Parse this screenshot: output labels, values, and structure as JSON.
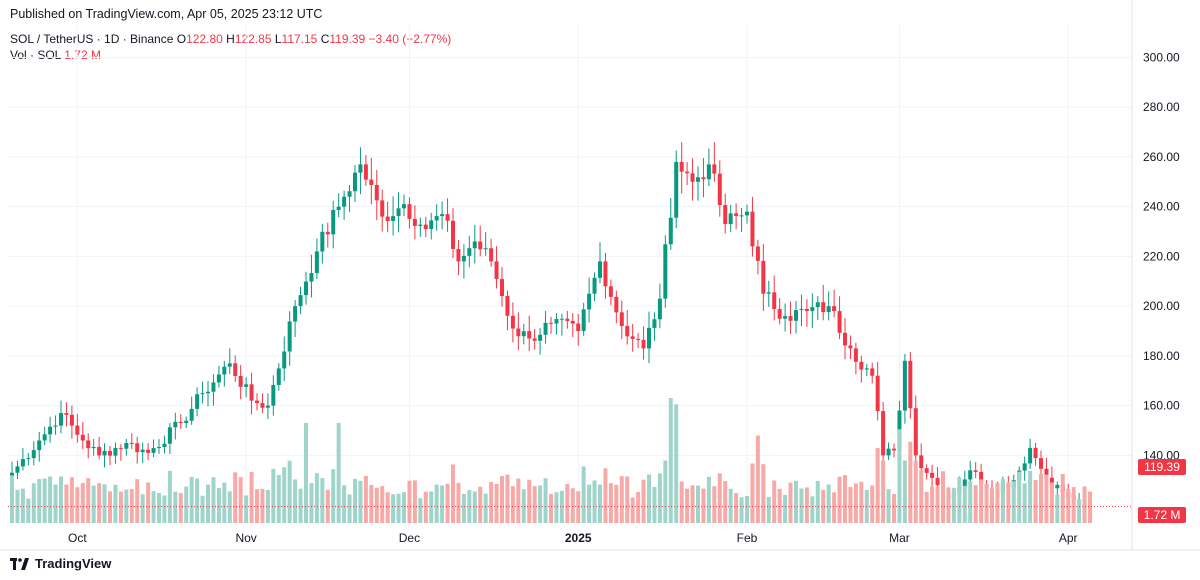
{
  "header": {
    "published": "Published on TradingView.com, Apr 05, 2025 23:12 UTC"
  },
  "legend": {
    "symbol": "SOL / TetherUS · 1D · Binance",
    "o_label": "O",
    "o_value": "122.80",
    "h_label": "H",
    "h_value": "122.85",
    "l_label": "L",
    "l_value": "117.15",
    "c_label": "C",
    "c_value": "119.39",
    "change": "−3.40 (−2.77%)",
    "vol_label": "Vol · SOL",
    "vol_value": "1.72 M"
  },
  "price_tag": "119.39",
  "vol_tag": "1.72 M",
  "footer": {
    "brand": "TradingView"
  },
  "colors": {
    "up": "#089981",
    "down": "#f23645",
    "vol_up": "#9fd4cb",
    "vol_down": "#f7a9a7"
  },
  "chart_data": {
    "type": "candlestick",
    "y_axis": {
      "min": 112,
      "max": 305,
      "ticks": [
        120,
        140,
        160,
        180,
        200,
        220,
        240,
        260,
        280,
        300
      ],
      "tick_labels": [
        "",
        "140.00",
        "160.00",
        "180.00",
        "200.00",
        "220.00",
        "240.00",
        "260.00",
        "280.00",
        "300.00"
      ],
      "position": "right"
    },
    "x_axis": {
      "start_date": "2024-09-19",
      "end_date": "2025-04-05",
      "ticks": [
        {
          "label": "Oct",
          "date": "2024-10-01"
        },
        {
          "label": "Nov",
          "date": "2024-11-01"
        },
        {
          "label": "Dec",
          "date": "2024-12-01"
        },
        {
          "label": "2025",
          "date": "2025-01-01",
          "bold": true
        },
        {
          "label": "Feb",
          "date": "2025-02-01"
        },
        {
          "label": "Mar",
          "date": "2025-03-01"
        },
        {
          "label": "Apr",
          "date": "2025-04-01"
        }
      ]
    },
    "grid": true,
    "last_price": 119.39,
    "keypoints": [
      [
        "2024-09-19",
        133
      ],
      [
        "2024-09-24",
        146
      ],
      [
        "2024-09-28",
        157
      ],
      [
        "2024-10-02",
        146
      ],
      [
        "2024-10-05",
        140
      ],
      [
        "2024-10-10",
        145
      ],
      [
        "2024-10-14",
        141
      ],
      [
        "2024-10-20",
        153
      ],
      [
        "2024-10-24",
        165
      ],
      [
        "2024-10-29",
        177
      ],
      [
        "2024-11-02",
        162
      ],
      [
        "2024-11-05",
        160
      ],
      [
        "2024-11-10",
        200
      ],
      [
        "2024-11-14",
        222
      ],
      [
        "2024-11-18",
        240
      ],
      [
        "2024-11-22",
        257
      ],
      [
        "2024-11-26",
        236
      ],
      [
        "2024-11-30",
        241
      ],
      [
        "2024-12-04",
        231
      ],
      [
        "2024-12-07",
        237
      ],
      [
        "2024-12-10",
        218
      ],
      [
        "2024-12-13",
        226
      ],
      [
        "2024-12-16",
        218
      ],
      [
        "2024-12-20",
        191
      ],
      [
        "2024-12-23",
        187
      ],
      [
        "2024-12-27",
        193
      ],
      [
        "2025-01-01",
        190
      ],
      [
        "2025-01-05",
        218
      ],
      [
        "2025-01-09",
        192
      ],
      [
        "2025-01-13",
        183
      ],
      [
        "2025-01-16",
        203
      ],
      [
        "2025-01-19",
        258
      ],
      [
        "2025-01-22",
        250
      ],
      [
        "2025-01-25",
        257
      ],
      [
        "2025-01-28",
        233
      ],
      [
        "2025-02-01",
        238
      ],
      [
        "2025-02-04",
        205
      ],
      [
        "2025-02-08",
        196
      ],
      [
        "2025-02-12",
        198
      ],
      [
        "2025-02-16",
        200
      ],
      [
        "2025-02-20",
        183
      ],
      [
        "2025-02-24",
        172
      ],
      [
        "2025-02-26",
        140
      ],
      [
        "2025-02-28",
        142
      ],
      [
        "2025-03-02",
        178
      ],
      [
        "2025-03-04",
        140
      ],
      [
        "2025-03-08",
        128
      ],
      [
        "2025-03-10",
        123
      ],
      [
        "2025-03-14",
        134
      ],
      [
        "2025-03-18",
        126
      ],
      [
        "2025-03-22",
        130
      ],
      [
        "2025-03-25",
        143
      ],
      [
        "2025-03-28",
        131
      ],
      [
        "2025-03-31",
        125
      ],
      [
        "2025-04-02",
        122
      ],
      [
        "2025-04-05",
        119.39
      ]
    ],
    "volume_spikes": [
      [
        "2024-11-12",
        0.8
      ],
      [
        "2024-11-18",
        0.8
      ],
      [
        "2025-01-18",
        1.0
      ],
      [
        "2025-01-19",
        0.95
      ],
      [
        "2025-02-03",
        0.7
      ],
      [
        "2025-02-25",
        0.6
      ],
      [
        "2025-03-01",
        0.75
      ],
      [
        "2025-03-03",
        0.65
      ]
    ]
  }
}
